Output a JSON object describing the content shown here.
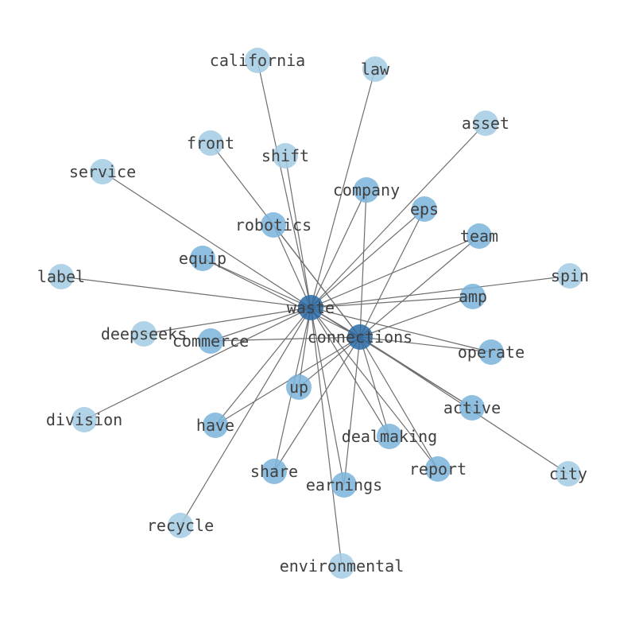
{
  "colors": {
    "edge": "#6e6e6e",
    "hub": "#2b6aa6",
    "shared": "#7ab3da",
    "leaf": "#a3cbe3",
    "label": "#404040"
  },
  "nodes": [
    {
      "label": "waste",
      "group": "hub"
    },
    {
      "label": "connections",
      "group": "hub"
    },
    {
      "label": "california",
      "group": "leaf"
    },
    {
      "label": "law",
      "group": "leaf"
    },
    {
      "label": "asset",
      "group": "leaf"
    },
    {
      "label": "front",
      "group": "leaf"
    },
    {
      "label": "shift",
      "group": "leaf"
    },
    {
      "label": "service",
      "group": "leaf"
    },
    {
      "label": "company",
      "group": "shared"
    },
    {
      "label": "eps",
      "group": "shared"
    },
    {
      "label": "robotics",
      "group": "shared"
    },
    {
      "label": "team",
      "group": "shared"
    },
    {
      "label": "equip",
      "group": "shared"
    },
    {
      "label": "label",
      "group": "leaf"
    },
    {
      "label": "spin",
      "group": "leaf"
    },
    {
      "label": "amp",
      "group": "shared"
    },
    {
      "label": "deepseeks",
      "group": "leaf"
    },
    {
      "label": "commerce",
      "group": "shared"
    },
    {
      "label": "operate",
      "group": "shared"
    },
    {
      "label": "up",
      "group": "shared"
    },
    {
      "label": "division",
      "group": "leaf"
    },
    {
      "label": "active",
      "group": "shared"
    },
    {
      "label": "have",
      "group": "shared"
    },
    {
      "label": "dealmaking",
      "group": "shared"
    },
    {
      "label": "report",
      "group": "shared"
    },
    {
      "label": "city",
      "group": "leaf"
    },
    {
      "label": "share",
      "group": "shared"
    },
    {
      "label": "earnings",
      "group": "shared"
    },
    {
      "label": "recycle",
      "group": "leaf"
    },
    {
      "label": "environmental",
      "group": "leaf"
    }
  ],
  "edges": [
    [
      "waste",
      "connections"
    ],
    [
      "waste",
      "california"
    ],
    [
      "waste",
      "law"
    ],
    [
      "waste",
      "asset"
    ],
    [
      "connections",
      "front"
    ],
    [
      "waste",
      "shift"
    ],
    [
      "waste",
      "service"
    ],
    [
      "waste",
      "label"
    ],
    [
      "waste",
      "spin"
    ],
    [
      "waste",
      "deepseeks"
    ],
    [
      "waste",
      "division"
    ],
    [
      "connections",
      "city"
    ],
    [
      "waste",
      "recycle"
    ],
    [
      "waste",
      "environmental"
    ],
    [
      "waste",
      "company"
    ],
    [
      "connections",
      "company"
    ],
    [
      "waste",
      "eps"
    ],
    [
      "connections",
      "eps"
    ],
    [
      "waste",
      "robotics"
    ],
    [
      "connections",
      "robotics"
    ],
    [
      "waste",
      "team"
    ],
    [
      "connections",
      "team"
    ],
    [
      "waste",
      "equip"
    ],
    [
      "connections",
      "equip"
    ],
    [
      "waste",
      "amp"
    ],
    [
      "connections",
      "amp"
    ],
    [
      "waste",
      "commerce"
    ],
    [
      "connections",
      "commerce"
    ],
    [
      "waste",
      "operate"
    ],
    [
      "connections",
      "operate"
    ],
    [
      "waste",
      "up"
    ],
    [
      "connections",
      "up"
    ],
    [
      "waste",
      "active"
    ],
    [
      "connections",
      "active"
    ],
    [
      "waste",
      "have"
    ],
    [
      "connections",
      "have"
    ],
    [
      "waste",
      "dealmaking"
    ],
    [
      "connections",
      "dealmaking"
    ],
    [
      "waste",
      "report"
    ],
    [
      "connections",
      "report"
    ],
    [
      "waste",
      "share"
    ],
    [
      "connections",
      "share"
    ],
    [
      "waste",
      "earnings"
    ],
    [
      "connections",
      "earnings"
    ]
  ]
}
